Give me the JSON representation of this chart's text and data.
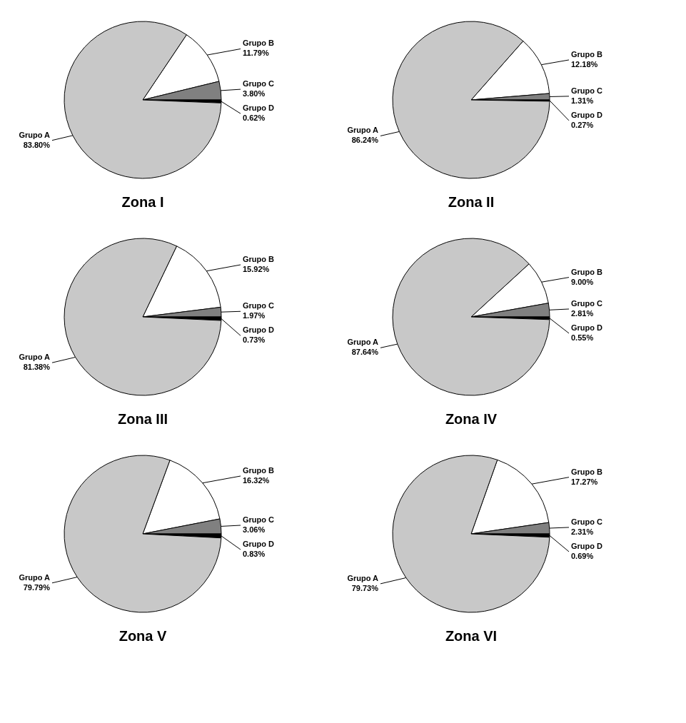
{
  "chart_data": [
    {
      "type": "pie",
      "title": "Zona I",
      "categories": [
        "Grupo A",
        "Grupo B",
        "Grupo C",
        "Grupo D"
      ],
      "values": [
        83.8,
        11.79,
        3.8,
        0.62
      ],
      "colors": [
        "#c8c8c8",
        "#ffffff",
        "#808080",
        "#000000"
      ],
      "value_labels": [
        "83.80%",
        "11.79%",
        "3.80%",
        "0.62%"
      ]
    },
    {
      "type": "pie",
      "title": "Zona II",
      "categories": [
        "Grupo A",
        "Grupo B",
        "Grupo C",
        "Grupo D"
      ],
      "values": [
        86.24,
        12.18,
        1.31,
        0.27
      ],
      "colors": [
        "#c8c8c8",
        "#ffffff",
        "#808080",
        "#000000"
      ],
      "value_labels": [
        "86.24%",
        "12.18%",
        "1.31%",
        "0.27%"
      ]
    },
    {
      "type": "pie",
      "title": "Zona III",
      "categories": [
        "Grupo A",
        "Grupo B",
        "Grupo C",
        "Grupo D"
      ],
      "values": [
        81.38,
        15.92,
        1.97,
        0.73
      ],
      "colors": [
        "#c8c8c8",
        "#ffffff",
        "#808080",
        "#000000"
      ],
      "value_labels": [
        "81.38%",
        "15.92%",
        "1.97%",
        "0.73%"
      ]
    },
    {
      "type": "pie",
      "title": "Zona IV",
      "categories": [
        "Grupo A",
        "Grupo B",
        "Grupo C",
        "Grupo D"
      ],
      "values": [
        87.64,
        9.0,
        2.81,
        0.55
      ],
      "colors": [
        "#c8c8c8",
        "#ffffff",
        "#808080",
        "#000000"
      ],
      "value_labels": [
        "87.64%",
        "9.00%",
        "2.81%",
        "0.55%"
      ]
    },
    {
      "type": "pie",
      "title": "Zona V",
      "categories": [
        "Grupo A",
        "Grupo B",
        "Grupo C",
        "Grupo D"
      ],
      "values": [
        79.79,
        16.32,
        3.06,
        0.83
      ],
      "colors": [
        "#c8c8c8",
        "#ffffff",
        "#808080",
        "#000000"
      ],
      "value_labels": [
        "79.79%",
        "16.32%",
        "3.06%",
        "0.83%"
      ]
    },
    {
      "type": "pie",
      "title": "Zona VI",
      "categories": [
        "Grupo A",
        "Grupo B",
        "Grupo C",
        "Grupo D"
      ],
      "values": [
        79.73,
        17.27,
        2.31,
        0.69
      ],
      "colors": [
        "#c8c8c8",
        "#ffffff",
        "#808080",
        "#000000"
      ],
      "value_labels": [
        "79.73%",
        "17.27%",
        "2.31%",
        "0.69%"
      ]
    }
  ]
}
